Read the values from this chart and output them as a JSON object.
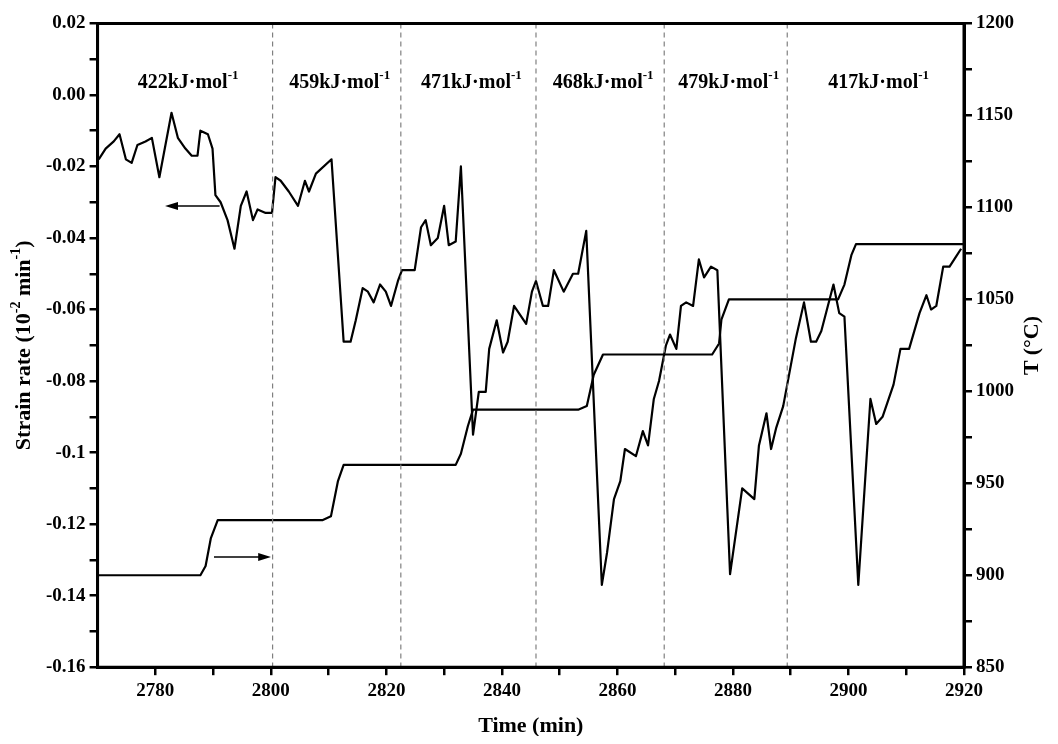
{
  "chart_data": {
    "type": "line",
    "xlabel": "Time (min)",
    "ylabel": "Strain rate (10$^{-2}$ min$^{-1}$)",
    "y2label": "T (°C)",
    "xlim": [
      2770,
      2920
    ],
    "xticks": [
      2780,
      {
        "value": 2790,
        "label": null
      },
      2800,
      {
        "value": 2810,
        "label": null
      },
      2820,
      {
        "value": 2830,
        "label": null
      },
      2840,
      {
        "value": 2850,
        "label": null
      },
      2860,
      {
        "value": 2870,
        "label": null
      },
      2880,
      {
        "value": 2890,
        "label": null
      },
      2900,
      {
        "value": 2910,
        "label": null
      },
      2920
    ],
    "ylim": [
      -0.16,
      0.02
    ],
    "yticks": [
      -0.16,
      {
        "value": -0.15,
        "label": null
      },
      -0.14,
      {
        "value": -0.13,
        "label": null
      },
      -0.12,
      {
        "value": -0.11,
        "label": null
      },
      -0.1,
      {
        "value": -0.09,
        "label": null
      },
      -0.08,
      {
        "value": -0.07,
        "label": null
      },
      -0.06,
      {
        "value": -0.05,
        "label": null
      },
      -0.04,
      {
        "value": -0.03,
        "label": null
      },
      -0.02,
      {
        "value": -0.01,
        "label": null
      },
      {
        "value": 0,
        "label": "0.00"
      },
      {
        "value": 0.01,
        "label": null
      },
      0.02
    ],
    "y2lim": [
      850,
      1200
    ],
    "y2ticks": [
      850,
      {
        "value": 875,
        "label": null
      },
      900,
      {
        "value": 925,
        "label": null
      },
      950,
      {
        "value": 975,
        "label": null
      },
      1000,
      {
        "value": 1025,
        "label": null
      },
      1050,
      {
        "value": 1075,
        "label": null
      },
      1100,
      {
        "value": 1125,
        "label": null
      },
      1150,
      {
        "value": 1175,
        "label": null
      },
      1200
    ],
    "grid": false,
    "legend": false,
    "marker": "none",
    "line_style": "solid",
    "series": [
      {
        "color": "#000000",
        "x": [
          2770.2,
          2771.4,
          2772.8,
          2773.8,
          2774.9,
          2775.9,
          2776.9,
          2778.3,
          2779.4,
          2780.7,
          2782.8,
          2783.9,
          2785.2,
          2786.3,
          2787.3,
          2787.8,
          2789.1,
          2789.9,
          2790.4,
          2791.3,
          2792.5,
          2793.7,
          2794.8,
          2795.8,
          2796.9,
          2797.7,
          2799.1,
          2800.2,
          2800.8,
          2801.7,
          2803.1,
          2804.7,
          2805.9,
          2806.6,
          2807.8,
          2810.5,
          2812.6,
          2813.8,
          2814.7,
          2815.9,
          2816.8,
          2817.8,
          2818.9,
          2819.9,
          2820.8,
          2822.0,
          2822.7,
          2824.9,
          2826.0,
          2826.8,
          2827.7,
          2828.9,
          2830.0,
          2830.8,
          2832.0,
          2832.9,
          2835.0,
          2836.0,
          2837.2,
          2837.8,
          2839.1,
          2840.2,
          2841.0,
          2842.1,
          2844.2,
          2845.2,
          2845.9,
          2847.1,
          2848.0,
          2849.0,
          2850.7,
          2852.3,
          2853.2,
          2854.6,
          2857.3,
          2858.2,
          2859.4,
          2860.5,
          2861.3,
          2863.2,
          2864.4,
          2865.3,
          2866.3,
          2867.2,
          2868.4,
          2869.1,
          2870.2,
          2871.0,
          2871.9,
          2873.1,
          2874.1,
          2875.0,
          2876.2,
          2877.3,
          2879.5,
          2881.6,
          2883.7,
          2884.5,
          2885.8,
          2886.6,
          2887.5,
          2888.7,
          2890.9,
          2892.3,
          2893.5,
          2894.4,
          2895.3,
          2897.4,
          2898.4,
          2899.3,
          2901.7,
          2903.8,
          2904.8,
          2905.9,
          2907.8,
          2909.0,
          2910.5,
          2912.3,
          2913.5,
          2914.3,
          2915.2,
          2916.4,
          2917.5,
          2918.7,
          2919.5
        ],
        "values": [
          -0.018,
          -0.015,
          -0.013,
          -0.011,
          -0.018,
          -0.019,
          -0.014,
          -0.013,
          -0.012,
          -0.023,
          -0.005,
          -0.012,
          -0.015,
          -0.017,
          -0.017,
          -0.01,
          -0.011,
          -0.015,
          -0.028,
          -0.03,
          -0.035,
          -0.043,
          -0.031,
          -0.027,
          -0.035,
          -0.032,
          -0.033,
          -0.033,
          -0.023,
          -0.024,
          -0.027,
          -0.031,
          -0.024,
          -0.027,
          -0.022,
          -0.018,
          -0.069,
          -0.069,
          -0.063,
          -0.054,
          -0.055,
          -0.058,
          -0.053,
          -0.055,
          -0.059,
          -0.052,
          -0.049,
          -0.049,
          -0.037,
          -0.035,
          -0.042,
          -0.04,
          -0.031,
          -0.042,
          -0.041,
          -0.02,
          -0.095,
          -0.083,
          -0.083,
          -0.071,
          -0.063,
          -0.072,
          -0.069,
          -0.059,
          -0.064,
          -0.055,
          -0.052,
          -0.059,
          -0.059,
          -0.049,
          -0.055,
          -0.05,
          -0.05,
          -0.038,
          -0.137,
          -0.128,
          -0.113,
          -0.108,
          -0.099,
          -0.101,
          -0.094,
          -0.098,
          -0.085,
          -0.08,
          -0.07,
          -0.067,
          -0.071,
          -0.059,
          -0.058,
          -0.059,
          -0.046,
          -0.051,
          -0.048,
          -0.049,
          -0.134,
          -0.11,
          -0.113,
          -0.098,
          -0.089,
          -0.099,
          -0.093,
          -0.087,
          -0.068,
          -0.058,
          -0.069,
          -0.069,
          -0.066,
          -0.053,
          -0.061,
          -0.062,
          -0.137,
          -0.085,
          -0.092,
          -0.09,
          -0.081,
          -0.071,
          -0.071,
          -0.061,
          -0.056,
          -0.06,
          -0.059,
          -0.048,
          -0.048,
          -0.045,
          -0.043
        ]
      },
      {
        "color": "#000000",
        "axis": "y2",
        "x": [
          2770,
          2787.8,
          2788.7,
          2789.6,
          2790.8,
          2809.0,
          2810.4,
          2811.6,
          2812.6,
          2832.0,
          2832.9,
          2834.1,
          2835.0,
          2853.2,
          2854.7,
          2855.9,
          2857.5,
          2876.4,
          2877.6,
          2878.0,
          2879.3,
          2898.2,
          2899.3,
          2900.5,
          2901.3,
          2920
        ],
        "values": [
          900,
          900,
          905,
          920,
          930,
          930,
          932,
          951,
          960,
          960,
          966,
          981,
          990,
          990,
          992,
          1009,
          1020,
          1020,
          1026,
          1039,
          1050,
          1050,
          1058,
          1074,
          1080,
          1080
        ]
      }
    ],
    "ref_lines": [
      {
        "axis": "x",
        "value": 2800.3,
        "color": "#808080",
        "line_style": "dashed"
      },
      {
        "axis": "x",
        "value": 2822.5,
        "color": "#808080",
        "line_style": "dashed"
      },
      {
        "axis": "x",
        "value": 2845.9,
        "color": "#808080",
        "line_style": "dashed"
      },
      {
        "axis": "x",
        "value": 2868.1,
        "color": "#808080",
        "line_style": "dashed"
      },
      {
        "axis": "x",
        "value": 2889.4,
        "color": "#808080",
        "line_style": "dashed"
      }
    ],
    "annotations": [
      "422kJ·mol$^{-1}$",
      "459kJ·mol$^{-1}$",
      "471kJ·mol$^{-1}$",
      "468kJ·mol$^{-1}$",
      "479kJ·mol$^{-1}$",
      "417kJ·mol$^{-1}$"
    ]
  }
}
